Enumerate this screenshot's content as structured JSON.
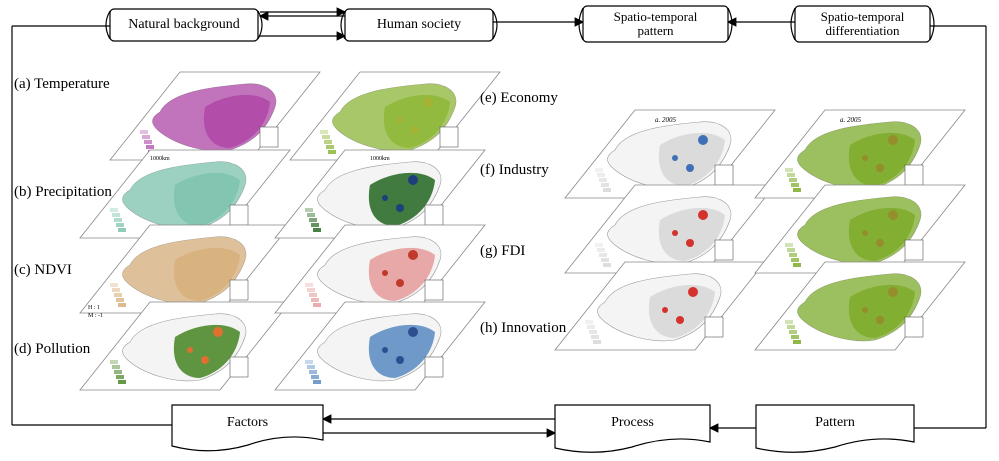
{
  "top_boxes": {
    "natural_background": "Natural background",
    "human_society": "Human society",
    "spatio_temporal_pattern": [
      "Spatio-temporal",
      "pattern"
    ],
    "spatio_temporal_differentiation": [
      "Spatio-temporal",
      "differentiation"
    ]
  },
  "bottom_boxes": {
    "factors": "Factors",
    "process": "Process",
    "pattern": "Pattern"
  },
  "natural_layers": [
    {
      "label": "(a) Temperature"
    },
    {
      "label": "(b) Precipitation"
    },
    {
      "label": "(c) NDVI"
    },
    {
      "label": "(d) Pollution"
    }
  ],
  "human_layers": [
    {
      "label": "(e) Economy"
    },
    {
      "label": "(f) Industry"
    },
    {
      "label": "(g) FDI"
    },
    {
      "label": "(h) Innovation"
    }
  ],
  "map_texts": {
    "year_a": "a. 2005",
    "year_b": "a. 2005",
    "scale": "1000km",
    "ndvi_high": "H : 1",
    "ndvi_low": "M : -1"
  },
  "colors": {
    "temperature": "#b04aa8",
    "precipitation": "#7fc4b0",
    "ndvi": "#d7b07c",
    "pollution": "#4f8a2c",
    "economy": "#8fb83a",
    "industry": "#2f6e2c",
    "fdi": "#e7a0a0",
    "innovation": "#5f8fc4",
    "cluster_high": "#d4322c",
    "cluster_low": "#3f6fb5",
    "pattern_fill": "#7fae2e"
  }
}
